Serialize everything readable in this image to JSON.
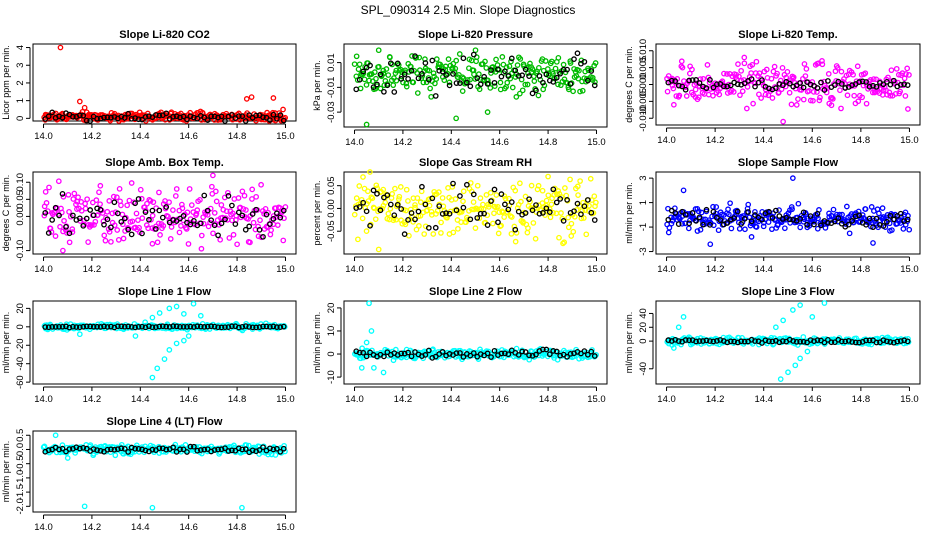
{
  "page_title": "SPL_090314  2.5 Min. Slope Diagnostics",
  "chart_data": [
    {
      "type": "scatter",
      "title": "Slope Li-820 CO2",
      "ylabel": "Licor ppm per min.",
      "xlim": [
        14.0,
        15.0
      ],
      "xticks": [
        "14.0",
        "14.2",
        "14.4",
        "14.6",
        "14.8",
        "15.0"
      ],
      "ylim": [
        -0.15,
        4.2
      ],
      "yticks": [
        "0",
        "1",
        "2",
        "3",
        "4"
      ],
      "color": "#ff0000",
      "center": 0.1,
      "spread": 0.12,
      "black_spread": 0.15,
      "outliers": [
        [
          14.07,
          4.0
        ],
        [
          14.15,
          0.95
        ],
        [
          14.17,
          0.6
        ],
        [
          14.86,
          1.2
        ],
        [
          14.84,
          1.1
        ],
        [
          14.95,
          1.15
        ],
        [
          14.99,
          0.5
        ]
      ]
    },
    {
      "type": "scatter",
      "title": "Slope Li-820 Pressure",
      "ylabel": "kPa per min.",
      "xlim": [
        14.0,
        15.0
      ],
      "xticks": [
        "14.0",
        "14.2",
        "14.4",
        "14.6",
        "14.8",
        "15.0"
      ],
      "ylim": [
        -0.042,
        0.025
      ],
      "yticks": [
        "-0.03",
        "-0.01",
        "0.01"
      ],
      "color": "#00bb00",
      "center": 0.0,
      "spread": 0.008,
      "black_spread": 0.01,
      "outliers": [
        [
          14.05,
          -0.04
        ],
        [
          14.42,
          -0.035
        ],
        [
          14.55,
          -0.03
        ],
        [
          14.1,
          0.02
        ],
        [
          14.5,
          0.02
        ]
      ]
    },
    {
      "type": "scatter",
      "title": "Slope Li-820 Temp.",
      "ylabel": "degrees C per min.",
      "xlim": [
        14.0,
        15.0
      ],
      "xticks": [
        "14.0",
        "14.2",
        "14.4",
        "14.6",
        "14.8",
        "15.0"
      ],
      "ylim": [
        -0.012,
        0.012
      ],
      "yticks": [
        "-0.010",
        "-0.005",
        "0.000",
        "0.005",
        "0.010"
      ],
      "color": "#ff00ff",
      "center": 0.0,
      "spread": 0.003,
      "black_spread": 0.001,
      "outliers": [
        [
          14.32,
          0.008
        ],
        [
          14.48,
          -0.011
        ],
        [
          14.03,
          -0.006
        ],
        [
          14.64,
          0.007
        ]
      ]
    },
    {
      "type": "scatter",
      "title": "Slope Amb. Box Temp.",
      "ylabel": "degrees C per min.",
      "xlim": [
        14.0,
        15.0
      ],
      "xticks": [
        "14.0",
        "14.2",
        "14.4",
        "14.6",
        "14.8",
        "15.0"
      ],
      "ylim": [
        -0.11,
        0.13
      ],
      "yticks": [
        "-0.10",
        "0.00",
        "0.05",
        "0.10"
      ],
      "color": "#ff00ff",
      "center": 0.0,
      "spread": 0.04,
      "black_spread": 0.035,
      "outliers": [
        [
          14.7,
          0.12
        ],
        [
          14.08,
          -0.1
        ],
        [
          14.45,
          -0.08
        ]
      ]
    },
    {
      "type": "scatter",
      "title": "Slope Gas Stream RH",
      "ylabel": "percent per min.",
      "xlim": [
        14.0,
        15.0
      ],
      "xticks": [
        "14.0",
        "14.2",
        "14.4",
        "14.6",
        "14.8",
        "15.0"
      ],
      "ylim": [
        -0.1,
        0.08
      ],
      "yticks": [
        "-0.05",
        "0.00",
        "0.05"
      ],
      "color": "#ffff00",
      "center": 0.0,
      "spread": 0.03,
      "black_spread": 0.03,
      "outliers": [
        [
          14.1,
          -0.09
        ],
        [
          14.8,
          0.07
        ]
      ]
    },
    {
      "type": "scatter",
      "title": "Slope Sample Flow",
      "ylabel": "ml/min per min.",
      "xlim": [
        14.0,
        15.0
      ],
      "xticks": [
        "14.0",
        "14.2",
        "14.4",
        "14.6",
        "14.8",
        "15.0"
      ],
      "ylim": [
        -3.2,
        3.5
      ],
      "yticks": [
        "-3",
        "-1",
        "1",
        "3"
      ],
      "color": "#0000ff",
      "center": -0.3,
      "spread": 0.5,
      "black_spread": 0.4,
      "outliers": [
        [
          14.52,
          3.0
        ],
        [
          14.07,
          2.0
        ],
        [
          14.18,
          -2.4
        ],
        [
          14.85,
          -2.3
        ],
        [
          14.35,
          -1.8
        ]
      ]
    },
    {
      "type": "scatter",
      "title": "Slope Line 1 Flow",
      "ylabel": "ml/min per min.",
      "xlim": [
        14.0,
        15.0
      ],
      "xticks": [
        "14.0",
        "14.2",
        "14.4",
        "14.6",
        "14.8",
        "15.0"
      ],
      "ylim": [
        -62,
        28
      ],
      "yticks": [
        "-60",
        "-40",
        "-20",
        "0",
        "20"
      ],
      "color": "#00ffff",
      "center": 0.0,
      "spread": 1.5,
      "black_spread": 0.5,
      "outliers": [
        [
          14.45,
          -55
        ],
        [
          14.47,
          -45
        ],
        [
          14.5,
          -35
        ],
        [
          14.52,
          -25
        ],
        [
          14.55,
          -18
        ],
        [
          14.58,
          -15
        ],
        [
          14.6,
          -10
        ],
        [
          14.45,
          10
        ],
        [
          14.48,
          15
        ],
        [
          14.52,
          20
        ],
        [
          14.55,
          22
        ],
        [
          14.58,
          14
        ],
        [
          14.62,
          25
        ],
        [
          14.65,
          12
        ],
        [
          14.42,
          5
        ],
        [
          14.38,
          -10
        ],
        [
          14.15,
          -8
        ]
      ]
    },
    {
      "type": "scatter",
      "title": "Slope Line 2 Flow",
      "ylabel": "ml/min per min.",
      "xlim": [
        14.0,
        15.0
      ],
      "xticks": [
        "14.0",
        "14.2",
        "14.4",
        "14.6",
        "14.8",
        "15.0"
      ],
      "ylim": [
        -13,
        23
      ],
      "yticks": [
        "-10",
        "0",
        "10",
        "20"
      ],
      "color": "#00ffff",
      "center": 0.0,
      "spread": 1.0,
      "black_spread": 1.0,
      "outliers": [
        [
          14.06,
          22
        ],
        [
          14.07,
          10
        ],
        [
          14.03,
          -6
        ],
        [
          14.08,
          -6
        ],
        [
          14.12,
          -8
        ],
        [
          14.05,
          5
        ]
      ]
    },
    {
      "type": "scatter",
      "title": "Slope Line 3 Flow",
      "ylabel": "ml/min per min.",
      "xlim": [
        14.0,
        15.0
      ],
      "xticks": [
        "14.0",
        "14.2",
        "14.4",
        "14.6",
        "14.8",
        "15.0"
      ],
      "ylim": [
        -62,
        58
      ],
      "yticks": [
        "-40",
        "0",
        "20",
        "40"
      ],
      "color": "#00ffff",
      "center": 0.0,
      "spread": 2.5,
      "black_spread": 1.5,
      "outliers": [
        [
          14.47,
          -55
        ],
        [
          14.5,
          -45
        ],
        [
          14.53,
          -35
        ],
        [
          14.55,
          -25
        ],
        [
          14.58,
          -15
        ],
        [
          14.45,
          20
        ],
        [
          14.48,
          30
        ],
        [
          14.52,
          45
        ],
        [
          14.55,
          52
        ],
        [
          14.6,
          35
        ],
        [
          14.65,
          55
        ],
        [
          14.07,
          35
        ],
        [
          14.05,
          20
        ],
        [
          14.03,
          -10
        ],
        [
          14.1,
          -5
        ]
      ]
    },
    {
      "type": "scatter",
      "title": "Slope Line 4 (LT) Flow",
      "ylabel": "ml/min per min.",
      "xlim": [
        14.0,
        15.0
      ],
      "xticks": [
        "14.0",
        "14.2",
        "14.4",
        "14.6",
        "14.8",
        "15.0"
      ],
      "ylim": [
        -2.2,
        0.65
      ],
      "yticks": [
        "-2.0",
        "-1.5",
        "-1.0",
        "-0.5",
        "0.0",
        "0.5"
      ],
      "color": "#00ffff",
      "center": 0.0,
      "spread": 0.08,
      "black_spread": 0.06,
      "outliers": [
        [
          14.05,
          0.5
        ],
        [
          14.17,
          -2.0
        ],
        [
          14.45,
          -2.05
        ],
        [
          14.82,
          -2.05
        ],
        [
          14.1,
          -0.3
        ]
      ]
    }
  ]
}
